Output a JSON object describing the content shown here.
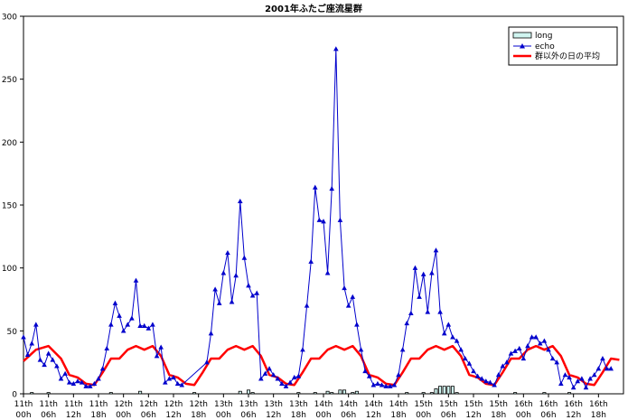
{
  "chart_data": {
    "type": "line",
    "title": "2001年ふたご座流星群",
    "xlabel": "",
    "ylabel": "",
    "ylim": [
      0,
      300
    ],
    "yticks": [
      0,
      50,
      100,
      150,
      200,
      250,
      300
    ],
    "x_range": [
      0,
      144
    ],
    "x_ticks": [
      {
        "x": 0,
        "day": "11th",
        "hour": "00h"
      },
      {
        "x": 6,
        "day": "11th",
        "hour": "06h"
      },
      {
        "x": 12,
        "day": "11th",
        "hour": "12h"
      },
      {
        "x": 18,
        "day": "11th",
        "hour": "18h"
      },
      {
        "x": 24,
        "day": "12th",
        "hour": "00h"
      },
      {
        "x": 30,
        "day": "12th",
        "hour": "06h"
      },
      {
        "x": 36,
        "day": "12th",
        "hour": "12h"
      },
      {
        "x": 42,
        "day": "12th",
        "hour": "18h"
      },
      {
        "x": 48,
        "day": "13th",
        "hour": "00h"
      },
      {
        "x": 54,
        "day": "13th",
        "hour": "06h"
      },
      {
        "x": 60,
        "day": "13th",
        "hour": "12h"
      },
      {
        "x": 66,
        "day": "13th",
        "hour": "18h"
      },
      {
        "x": 72,
        "day": "14th",
        "hour": "00h"
      },
      {
        "x": 78,
        "day": "14th",
        "hour": "06h"
      },
      {
        "x": 84,
        "day": "14th",
        "hour": "12h"
      },
      {
        "x": 90,
        "day": "14th",
        "hour": "18h"
      },
      {
        "x": 96,
        "day": "15th",
        "hour": "00h"
      },
      {
        "x": 102,
        "day": "15th",
        "hour": "06h"
      },
      {
        "x": 108,
        "day": "15th",
        "hour": "12h"
      },
      {
        "x": 114,
        "day": "15th",
        "hour": "18h"
      },
      {
        "x": 120,
        "day": "16th",
        "hour": "00h"
      },
      {
        "x": 126,
        "day": "16th",
        "hour": "06h"
      },
      {
        "x": 132,
        "day": "16th",
        "hour": "12h"
      },
      {
        "x": 138,
        "day": "16th",
        "hour": "18h"
      }
    ],
    "legend": {
      "position": "top-right",
      "entries": [
        {
          "name": "long",
          "label": "long"
        },
        {
          "name": "echo",
          "label": "echo"
        },
        {
          "name": "avg",
          "label": "群以外の日の平均"
        }
      ]
    },
    "colors": {
      "echo": "#0000cc",
      "avg": "#ff0000",
      "long_fill": "#d0f5f0",
      "long_stroke": "#000000"
    },
    "series": [
      {
        "name": "echo",
        "type": "line",
        "marker": "triangle",
        "points": [
          [
            0,
            45
          ],
          [
            1,
            31
          ],
          [
            2,
            40
          ],
          [
            3,
            55
          ],
          [
            4,
            27
          ],
          [
            5,
            23
          ],
          [
            6,
            32
          ],
          [
            7,
            27
          ],
          [
            8,
            22
          ],
          [
            9,
            12
          ],
          [
            10,
            16
          ],
          [
            11,
            9
          ],
          [
            12,
            8
          ],
          [
            13,
            10
          ],
          [
            14,
            9
          ],
          [
            15,
            6
          ],
          [
            16,
            6
          ],
          [
            17,
            8
          ],
          [
            18,
            12
          ],
          [
            19,
            20
          ],
          [
            20,
            36
          ],
          [
            21,
            55
          ],
          [
            22,
            72
          ],
          [
            23,
            62
          ],
          [
            24,
            50
          ],
          [
            25,
            55
          ],
          [
            26,
            60
          ],
          [
            27,
            90
          ],
          [
            28,
            54
          ],
          [
            29,
            54
          ],
          [
            30,
            52
          ],
          [
            31,
            55
          ],
          [
            32,
            30
          ],
          [
            33,
            37
          ],
          [
            34,
            9
          ],
          [
            35,
            12
          ],
          [
            36,
            13
          ],
          [
            37,
            8
          ],
          [
            38,
            7
          ],
          [
            44,
            25
          ],
          [
            45,
            48
          ],
          [
            46,
            83
          ],
          [
            47,
            72
          ],
          [
            48,
            96
          ],
          [
            49,
            112
          ],
          [
            50,
            73
          ],
          [
            51,
            94
          ],
          [
            52,
            153
          ],
          [
            53,
            108
          ],
          [
            54,
            86
          ],
          [
            55,
            78
          ],
          [
            56,
            80
          ],
          [
            57,
            12
          ],
          [
            58,
            16
          ],
          [
            59,
            20
          ],
          [
            60,
            15
          ],
          [
            61,
            12
          ],
          [
            62,
            8
          ],
          [
            63,
            6
          ],
          [
            64,
            9
          ],
          [
            65,
            13
          ],
          [
            66,
            14
          ],
          [
            67,
            35
          ],
          [
            68,
            70
          ],
          [
            69,
            105
          ],
          [
            70,
            164
          ],
          [
            71,
            138
          ],
          [
            72,
            137
          ],
          [
            73,
            96
          ],
          [
            74,
            163
          ],
          [
            75,
            274
          ],
          [
            76,
            138
          ],
          [
            77,
            84
          ],
          [
            78,
            70
          ],
          [
            79,
            77
          ],
          [
            80,
            55
          ],
          [
            81,
            35
          ],
          [
            82,
            18
          ],
          [
            83,
            14
          ],
          [
            84,
            7
          ],
          [
            85,
            8
          ],
          [
            86,
            7
          ],
          [
            87,
            6
          ],
          [
            88,
            6
          ],
          [
            89,
            7
          ],
          [
            90,
            15
          ],
          [
            91,
            35
          ],
          [
            92,
            56
          ],
          [
            93,
            64
          ],
          [
            94,
            100
          ],
          [
            95,
            77
          ],
          [
            96,
            95
          ],
          [
            97,
            65
          ],
          [
            98,
            96
          ],
          [
            99,
            114
          ],
          [
            100,
            65
          ],
          [
            101,
            48
          ],
          [
            102,
            55
          ],
          [
            103,
            45
          ],
          [
            104,
            42
          ],
          [
            105,
            35
          ],
          [
            106,
            28
          ],
          [
            107,
            24
          ],
          [
            108,
            18
          ],
          [
            109,
            14
          ],
          [
            110,
            12
          ],
          [
            111,
            10
          ],
          [
            112,
            9
          ],
          [
            113,
            7
          ],
          [
            114,
            15
          ],
          [
            115,
            22
          ],
          [
            116,
            25
          ],
          [
            117,
            32
          ],
          [
            118,
            34
          ],
          [
            119,
            36
          ],
          [
            120,
            28
          ],
          [
            121,
            38
          ],
          [
            122,
            45
          ],
          [
            123,
            45
          ],
          [
            124,
            40
          ],
          [
            125,
            42
          ],
          [
            126,
            35
          ],
          [
            127,
            28
          ],
          [
            128,
            25
          ],
          [
            129,
            8
          ],
          [
            130,
            15
          ],
          [
            131,
            13
          ],
          [
            132,
            5
          ],
          [
            133,
            10
          ],
          [
            134,
            12
          ],
          [
            135,
            5
          ],
          [
            136,
            12
          ],
          [
            137,
            15
          ],
          [
            138,
            20
          ],
          [
            139,
            28
          ],
          [
            140,
            20
          ],
          [
            141,
            20
          ]
        ]
      },
      {
        "name": "avg",
        "type": "line",
        "points": [
          [
            0,
            26
          ],
          [
            3,
            35
          ],
          [
            6,
            38
          ],
          [
            9,
            28
          ],
          [
            11,
            15
          ],
          [
            13,
            13
          ],
          [
            15,
            8
          ],
          [
            17,
            7
          ],
          [
            19,
            17
          ],
          [
            21,
            28
          ],
          [
            23,
            28
          ],
          [
            25,
            35
          ],
          [
            27,
            38
          ],
          [
            29,
            35
          ],
          [
            31,
            38
          ],
          [
            33,
            30
          ],
          [
            35,
            15
          ],
          [
            37,
            13
          ],
          [
            39,
            8
          ],
          [
            41,
            7
          ],
          [
            43,
            17
          ],
          [
            45,
            28
          ],
          [
            47,
            28
          ],
          [
            49,
            35
          ],
          [
            51,
            38
          ],
          [
            53,
            35
          ],
          [
            55,
            38
          ],
          [
            57,
            30
          ],
          [
            59,
            15
          ],
          [
            61,
            13
          ],
          [
            63,
            8
          ],
          [
            65,
            7
          ],
          [
            67,
            17
          ],
          [
            69,
            28
          ],
          [
            71,
            28
          ],
          [
            73,
            35
          ],
          [
            75,
            38
          ],
          [
            77,
            35
          ],
          [
            79,
            38
          ],
          [
            81,
            30
          ],
          [
            83,
            15
          ],
          [
            85,
            13
          ],
          [
            87,
            8
          ],
          [
            89,
            7
          ],
          [
            91,
            17
          ],
          [
            93,
            28
          ],
          [
            95,
            28
          ],
          [
            97,
            35
          ],
          [
            99,
            38
          ],
          [
            101,
            35
          ],
          [
            103,
            38
          ],
          [
            105,
            30
          ],
          [
            107,
            15
          ],
          [
            109,
            13
          ],
          [
            111,
            8
          ],
          [
            113,
            7
          ],
          [
            115,
            17
          ],
          [
            117,
            28
          ],
          [
            119,
            28
          ],
          [
            121,
            35
          ],
          [
            123,
            38
          ],
          [
            125,
            35
          ],
          [
            127,
            38
          ],
          [
            129,
            30
          ],
          [
            131,
            15
          ],
          [
            133,
            13
          ],
          [
            135,
            8
          ],
          [
            137,
            7
          ],
          [
            139,
            17
          ],
          [
            141,
            28
          ],
          [
            143,
            27
          ]
        ]
      },
      {
        "name": "long",
        "type": "bar",
        "points": [
          [
            2,
            1
          ],
          [
            6,
            1
          ],
          [
            21,
            1
          ],
          [
            28,
            2
          ],
          [
            41,
            1
          ],
          [
            52,
            2
          ],
          [
            54,
            3
          ],
          [
            55,
            1
          ],
          [
            66,
            1
          ],
          [
            70,
            1
          ],
          [
            73,
            2
          ],
          [
            74,
            1
          ],
          [
            76,
            3
          ],
          [
            77,
            3
          ],
          [
            79,
            1
          ],
          [
            80,
            2
          ],
          [
            92,
            1
          ],
          [
            96,
            1
          ],
          [
            98,
            1
          ],
          [
            99,
            4
          ],
          [
            100,
            6
          ],
          [
            101,
            6
          ],
          [
            102,
            6
          ],
          [
            103,
            6
          ],
          [
            104,
            1
          ],
          [
            118,
            1
          ],
          [
            125,
            1
          ],
          [
            131,
            1
          ]
        ]
      }
    ]
  }
}
